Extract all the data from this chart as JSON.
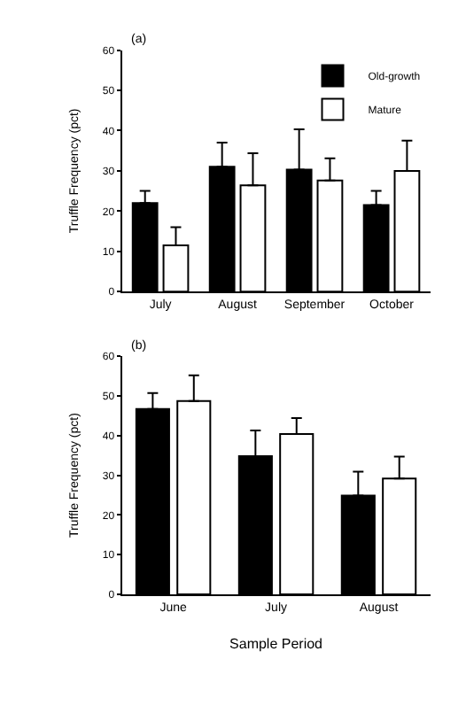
{
  "chart_data": [
    {
      "type": "bar",
      "title": "(a)",
      "ylabel": "Truffle Frequency (pct)",
      "categories": [
        "July",
        "August",
        "September",
        "October"
      ],
      "ylim": [
        0,
        60
      ],
      "yticks": [
        0,
        10,
        20,
        30,
        40,
        50,
        60
      ],
      "legend": "top right",
      "series": [
        {
          "name": "Old-growth",
          "color": "#000000",
          "values": [
            22,
            31,
            30.3,
            21.5
          ],
          "errors": [
            3,
            6,
            10,
            3.5
          ]
        },
        {
          "name": "Mature",
          "color": "#ffffff",
          "values": [
            11.5,
            26.4,
            27.6,
            30
          ],
          "errors": [
            4.5,
            8,
            5.5,
            7.5
          ]
        }
      ]
    },
    {
      "type": "bar",
      "title": "(b)",
      "ylabel": "Truffle Frequency (pct)",
      "xlabel": "Sample Period",
      "categories": [
        "June",
        "July",
        "August"
      ],
      "ylim": [
        0,
        60
      ],
      "yticks": [
        0,
        10,
        20,
        30,
        40,
        50,
        60
      ],
      "series": [
        {
          "color": "#000000",
          "values": [
            46.7,
            34.8,
            24.9
          ],
          "errors": [
            4,
            6.5,
            6
          ]
        },
        {
          "color": "#ffffff",
          "values": [
            48.7,
            40.4,
            29.2
          ],
          "errors": [
            6.5,
            4,
            5.5
          ]
        }
      ]
    }
  ]
}
